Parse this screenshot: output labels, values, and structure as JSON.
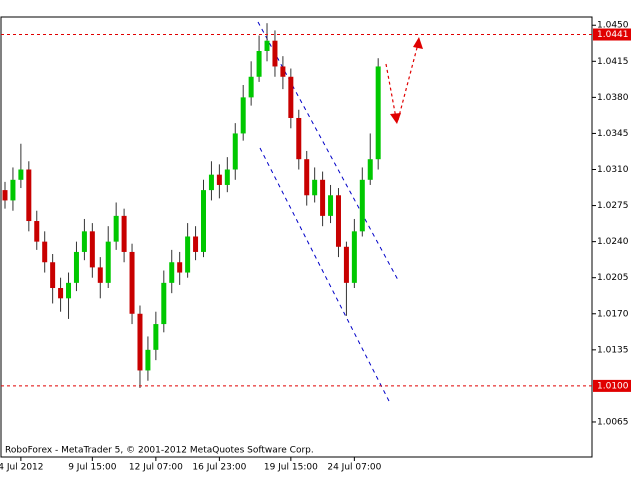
{
  "chart_data": {
    "type": "candlestick",
    "footer": "RoboForex - MetaTrader 5, © 2001-2012 MetaQuotes Software Corp.",
    "categories": [
      null,
      null,
      "4 Jul 2012",
      null,
      null,
      null,
      null,
      null,
      null,
      null,
      null,
      "9 Jul 15:00",
      null,
      null,
      null,
      null,
      null,
      null,
      null,
      "12 Jul 07:00",
      null,
      null,
      null,
      null,
      null,
      null,
      null,
      "16 Jul 23:00",
      null,
      null,
      null,
      null,
      null,
      null,
      null,
      null,
      "19 Jul 15:00",
      null,
      null,
      null,
      null,
      null,
      null,
      null,
      "24 Jul 07:00",
      null,
      null,
      null
    ],
    "open": [
      1.029,
      1.028,
      1.03,
      1.031,
      1.026,
      1.024,
      1.022,
      1.0195,
      1.0185,
      1.02,
      1.023,
      1.025,
      1.0215,
      1.02,
      1.024,
      1.0265,
      1.023,
      1.017,
      1.0115,
      1.0135,
      1.016,
      1.02,
      1.022,
      1.021,
      1.0245,
      1.023,
      1.029,
      1.0305,
      1.0295,
      1.031,
      1.0345,
      1.038,
      1.04,
      1.0425,
      1.0435,
      1.041,
      1.04,
      1.036,
      1.032,
      1.0285,
      1.03,
      1.0265,
      1.0285,
      1.0235,
      1.02,
      1.025,
      1.03,
      1.032
    ],
    "high": [
      1.0298,
      1.0312,
      1.0335,
      1.0318,
      1.027,
      1.025,
      1.0228,
      1.0205,
      1.021,
      1.024,
      1.0262,
      1.0258,
      1.0225,
      1.0255,
      1.0278,
      1.0272,
      1.0238,
      1.0178,
      1.0148,
      1.0172,
      1.0212,
      1.0232,
      1.023,
      1.0258,
      1.0255,
      1.03,
      1.0318,
      1.0315,
      1.0322,
      1.0355,
      1.0392,
      1.0415,
      1.044,
      1.0452,
      1.0445,
      1.042,
      1.0408,
      1.0368,
      1.0328,
      1.0312,
      1.0308,
      1.0295,
      1.0292,
      1.024,
      1.0262,
      1.0312,
      1.0345,
      1.0418
    ],
    "low": [
      1.0272,
      1.027,
      1.0292,
      1.025,
      1.0232,
      1.021,
      1.018,
      1.0172,
      1.0165,
      1.0192,
      1.0222,
      1.0205,
      1.0185,
      1.0195,
      1.0232,
      1.022,
      1.016,
      1.0098,
      1.0105,
      1.0125,
      1.0152,
      1.019,
      1.0198,
      1.0205,
      1.0222,
      1.0225,
      1.028,
      1.0282,
      1.0288,
      1.03,
      1.0338,
      1.0372,
      1.0395,
      1.0415,
      1.04,
      1.0388,
      1.035,
      1.031,
      1.0275,
      1.0278,
      1.0255,
      1.0258,
      1.0225,
      1.0168,
      1.0195,
      1.0245,
      1.0295,
      1.031
    ],
    "close": [
      1.028,
      1.03,
      1.031,
      1.026,
      1.024,
      1.022,
      1.0195,
      1.0185,
      1.02,
      1.023,
      1.025,
      1.0215,
      1.02,
      1.024,
      1.0265,
      1.023,
      1.017,
      1.0115,
      1.0135,
      1.016,
      1.02,
      1.022,
      1.021,
      1.0245,
      1.023,
      1.029,
      1.0305,
      1.0295,
      1.031,
      1.0345,
      1.038,
      1.04,
      1.0425,
      1.0435,
      1.041,
      1.04,
      1.036,
      1.032,
      1.0285,
      1.03,
      1.0265,
      1.0285,
      1.0235,
      1.02,
      1.025,
      1.03,
      1.032,
      1.041
    ],
    "up_color": "#00c800",
    "down_color": "#c80000",
    "ylim": [
      1.0031,
      1.0458
    ],
    "yticks": [
      {
        "value": 1.045,
        "label": "1.0450"
      },
      {
        "value": 1.0415,
        "label": "1.0415"
      },
      {
        "value": 1.038,
        "label": "1.0380"
      },
      {
        "value": 1.0345,
        "label": "1.0345"
      },
      {
        "value": 1.031,
        "label": "1.0310"
      },
      {
        "value": 1.0275,
        "label": "1.0275"
      },
      {
        "value": 1.024,
        "label": "1.0240"
      },
      {
        "value": 1.0205,
        "label": "1.0205"
      },
      {
        "value": 1.017,
        "label": "1.0170"
      },
      {
        "value": 1.0135,
        "label": "1.0135"
      },
      {
        "value": 1.0065,
        "label": "1.0065"
      }
    ],
    "levels": [
      {
        "value": 1.0441,
        "label": "1.0441"
      },
      {
        "value": 1.01,
        "label": "1.0100"
      }
    ],
    "level_color": "#e00000"
  }
}
